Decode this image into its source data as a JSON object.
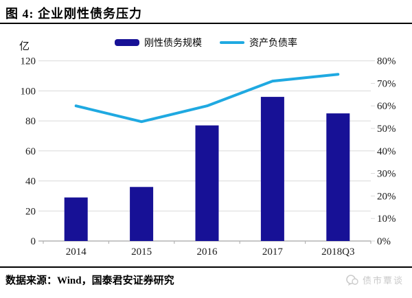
{
  "figure": {
    "title": "图 4: 企业刚性债务压力",
    "unit_label": "亿",
    "source_text": "数据来源：Wind，国泰君安证券研究",
    "watermark_text": "债市覃谈"
  },
  "colors": {
    "bar": "#171196",
    "line": "#1fa9e1",
    "gridline": "#d9d9d9",
    "axis_line": "#b3b3b3",
    "tick_text": "#1a1a1a",
    "watermark": "#c9c9c9"
  },
  "chart_data": {
    "type": "bar",
    "subtype": "bar+line combo, dual axis",
    "title": "企业刚性债务压力",
    "categories": [
      "2014",
      "2015",
      "2016",
      "2017",
      "2018Q3"
    ],
    "series": [
      {
        "name": "刚性债务规模",
        "type": "bar",
        "axis": "left",
        "values": [
          29,
          36,
          77,
          96,
          85
        ]
      },
      {
        "name": "资产负债率",
        "type": "line",
        "axis": "right",
        "values": [
          60,
          53,
          60,
          71,
          74
        ],
        "unit": "%"
      }
    ],
    "left_axis": {
      "label": "亿",
      "min": 0,
      "max": 120,
      "ticks": [
        0,
        20,
        40,
        60,
        80,
        100,
        120
      ]
    },
    "right_axis": {
      "min": 0,
      "max": 80,
      "ticks": [
        0,
        10,
        20,
        30,
        40,
        50,
        60,
        70,
        80
      ],
      "tick_labels": [
        "0%",
        "10%",
        "20%",
        "30%",
        "40%",
        "50%",
        "60%",
        "70%",
        "80%"
      ]
    },
    "legend_position": "top",
    "grid": true
  }
}
